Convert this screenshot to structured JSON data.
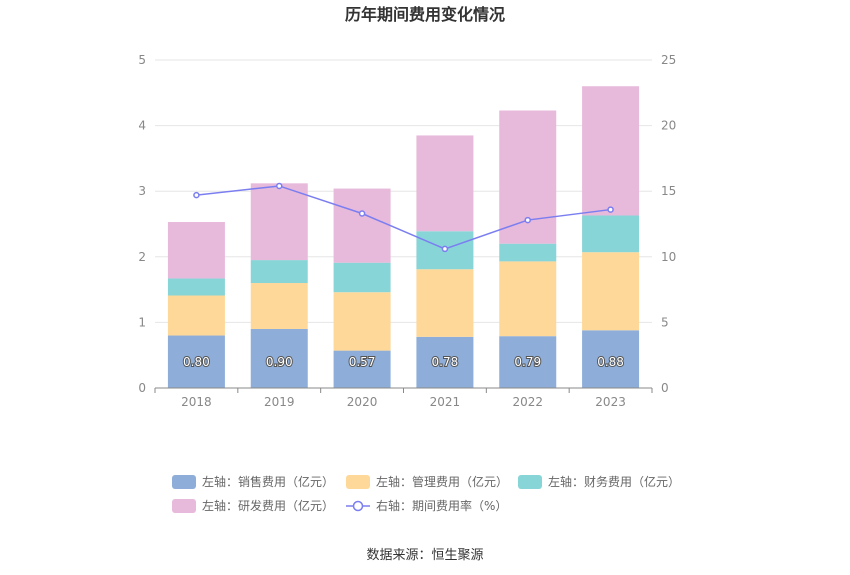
{
  "colors": {
    "sales": "#8eaed9",
    "mgmt": "#fed899",
    "fin": "#88d5d8",
    "rd": "#e7b9db",
    "line": "#7b7ef0",
    "grid": "#e6e6e6",
    "axis": "#888888"
  },
  "source": "数据来源：恒生聚源",
  "chart_data": {
    "type": "bar",
    "stacked": true,
    "title": "历年期间费用变化情况",
    "categories": [
      "2018",
      "2019",
      "2020",
      "2021",
      "2022",
      "2023"
    ],
    "left_axis": {
      "ylim": [
        0,
        5
      ],
      "ticks": [
        "0",
        "1",
        "2",
        "3",
        "4",
        "5"
      ]
    },
    "right_axis": {
      "ylim": [
        0,
        25
      ],
      "ticks": [
        "0",
        "5",
        "10",
        "15",
        "20",
        "25"
      ]
    },
    "series": [
      {
        "key": "sales",
        "name": "左轴：销售费用（亿元）",
        "axis": "left",
        "type": "bar",
        "values": [
          0.8,
          0.9,
          0.57,
          0.78,
          0.79,
          0.88
        ],
        "labels": [
          "0.80",
          "0.90",
          "0.57",
          "0.78",
          "0.79",
          "0.88"
        ]
      },
      {
        "key": "mgmt",
        "name": "左轴：管理费用（亿元）",
        "axis": "left",
        "type": "bar",
        "values": [
          0.61,
          0.7,
          0.89,
          1.03,
          1.14,
          1.19
        ]
      },
      {
        "key": "fin",
        "name": "左轴：财务费用（亿元）",
        "axis": "left",
        "type": "bar",
        "values": [
          0.26,
          0.35,
          0.45,
          0.58,
          0.27,
          0.56
        ]
      },
      {
        "key": "rd",
        "name": "左轴：研发费用（亿元）",
        "axis": "left",
        "type": "bar",
        "values": [
          0.86,
          1.17,
          1.13,
          1.46,
          2.03,
          1.97
        ]
      },
      {
        "key": "line",
        "name": "右轴：期间费用率（%）",
        "axis": "right",
        "type": "line",
        "values": [
          14.7,
          15.4,
          13.3,
          10.6,
          12.8,
          13.6
        ]
      }
    ]
  }
}
